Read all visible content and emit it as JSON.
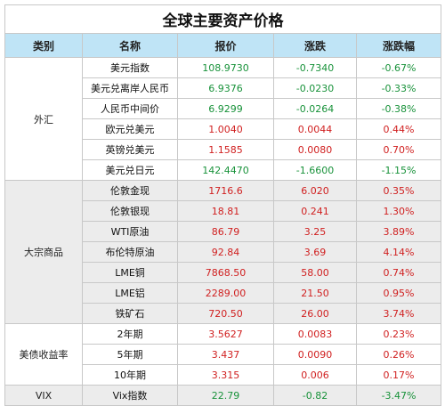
{
  "title": "全球主要资产价格",
  "headers": [
    "类别",
    "名称",
    "报价",
    "涨跌",
    "涨跌幅"
  ],
  "colors": {
    "header_bg": "#bfe4f6",
    "up": "#d01f1f",
    "down": "#18923a",
    "band": "#ececec"
  },
  "groups": [
    {
      "category": "外汇",
      "rows": [
        {
          "name": "美元指数",
          "price": "108.9730",
          "change": "-0.7340",
          "pct": "-0.67%",
          "dir": "down"
        },
        {
          "name": "美元兑离岸人民币",
          "price": "6.9376",
          "change": "-0.0230",
          "pct": "-0.33%",
          "dir": "down"
        },
        {
          "name": "人民币中间价",
          "price": "6.9299",
          "change": "-0.0264",
          "pct": "-0.38%",
          "dir": "down"
        },
        {
          "name": "欧元兑美元",
          "price": "1.0040",
          "change": "0.0044",
          "pct": "0.44%",
          "dir": "up"
        },
        {
          "name": "英镑兑美元",
          "price": "1.1585",
          "change": "0.0080",
          "pct": "0.70%",
          "dir": "up"
        },
        {
          "name": "美元兑日元",
          "price": "142.4470",
          "change": "-1.6600",
          "pct": "-1.15%",
          "dir": "down"
        }
      ]
    },
    {
      "category": "大宗商品",
      "rows": [
        {
          "name": "伦敦金现",
          "price": "1716.6",
          "change": "6.020",
          "pct": "0.35%",
          "dir": "up"
        },
        {
          "name": "伦敦银现",
          "price": "18.81",
          "change": "0.241",
          "pct": "1.30%",
          "dir": "up"
        },
        {
          "name": "WTI原油",
          "price": "86.79",
          "change": "3.25",
          "pct": "3.89%",
          "dir": "up"
        },
        {
          "name": "布伦特原油",
          "price": "92.84",
          "change": "3.69",
          "pct": "4.14%",
          "dir": "up"
        },
        {
          "name": "LME铜",
          "price": "7868.50",
          "change": "58.00",
          "pct": "0.74%",
          "dir": "up"
        },
        {
          "name": "LME铝",
          "price": "2289.00",
          "change": "21.50",
          "pct": "0.95%",
          "dir": "up"
        },
        {
          "name": "铁矿石",
          "price": "720.50",
          "change": "26.00",
          "pct": "3.74%",
          "dir": "up"
        }
      ]
    },
    {
      "category": "美债收益率",
      "rows": [
        {
          "name": "2年期",
          "price": "3.5627",
          "change": "0.0083",
          "pct": "0.23%",
          "dir": "up"
        },
        {
          "name": "5年期",
          "price": "3.437",
          "change": "0.0090",
          "pct": "0.26%",
          "dir": "up"
        },
        {
          "name": "10年期",
          "price": "3.315",
          "change": "0.006",
          "pct": "0.17%",
          "dir": "up"
        }
      ]
    },
    {
      "category": "VIX",
      "rows": [
        {
          "name": "Vix指数",
          "price": "22.79",
          "change": "-0.82",
          "pct": "-3.47%",
          "dir": "down"
        }
      ]
    }
  ]
}
